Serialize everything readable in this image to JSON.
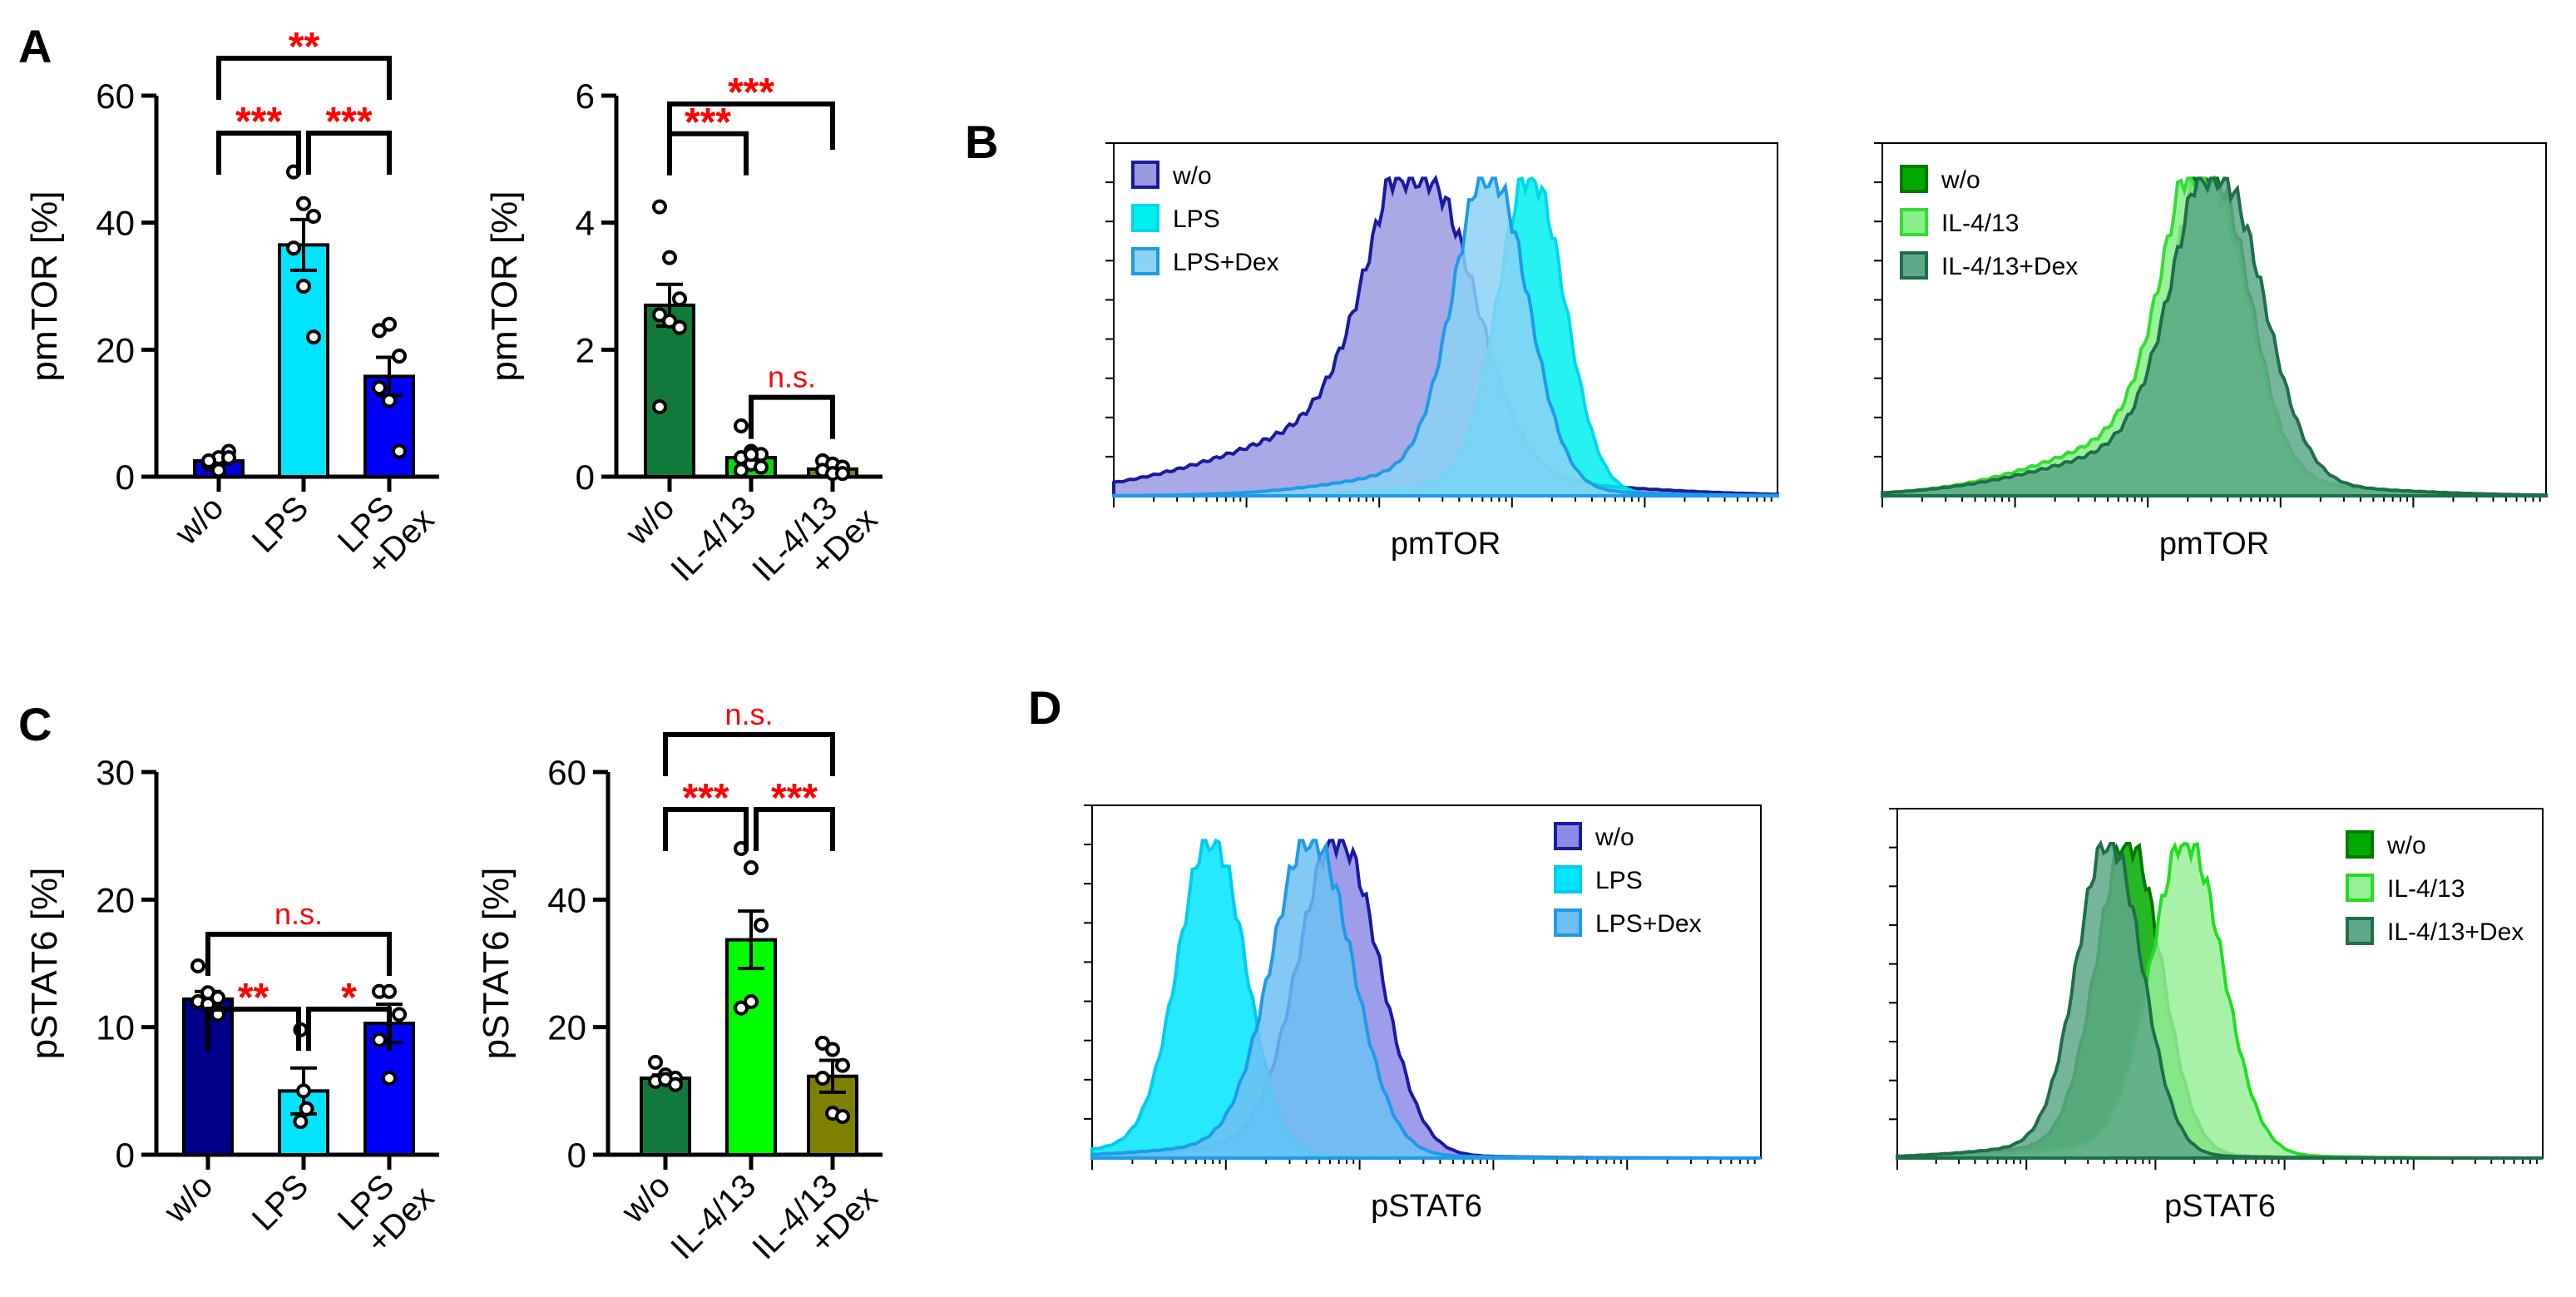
{
  "panel_labels": [
    "A",
    "B",
    "C",
    "D"
  ],
  "chart_data": [
    {
      "id": "A1",
      "type": "bar",
      "ylabel": "pmTOR [%]",
      "ylim": [
        0,
        60
      ],
      "yticks": [
        0,
        20,
        40,
        60
      ],
      "categories": [
        "w/o",
        "LPS",
        "LPS\n+Dex"
      ],
      "colors": [
        "#0000E0",
        "#00E5FF",
        "#0000FF"
      ],
      "values": [
        2.5,
        36.5,
        15.8
      ],
      "sem": [
        0.5,
        4,
        3
      ],
      "points": [
        [
          2,
          3,
          4,
          2.5,
          1,
          3
        ],
        [
          48,
          43,
          41,
          36,
          30,
          22
        ],
        [
          23,
          24,
          19,
          14,
          12,
          4
        ]
      ],
      "significance": [
        {
          "pair": [
            0,
            1
          ],
          "label": "***",
          "level": 1
        },
        {
          "pair": [
            1,
            2
          ],
          "label": "***",
          "level": 1
        },
        {
          "pair": [
            0,
            2
          ],
          "label": "**",
          "level": 2
        }
      ]
    },
    {
      "id": "A2",
      "type": "bar",
      "ylabel": "pmTOR [%]",
      "ylim": [
        0,
        6
      ],
      "yticks": [
        0,
        2,
        4,
        6
      ],
      "categories": [
        "w/o",
        "IL-4/13",
        "IL-4/13\n+Dex"
      ],
      "colors": [
        "#117A3A",
        "#00DD00",
        "#808000"
      ],
      "values": [
        2.7,
        0.3,
        0.12
      ],
      "sem": [
        0.33,
        0.07,
        0.04
      ],
      "points": [
        [
          4.25,
          3.45,
          2.8,
          2.55,
          2.45,
          2.35,
          1.1
        ],
        [
          0.8,
          0.4,
          0.35,
          0.3,
          0.2,
          0.15,
          0.1,
          0.35
        ],
        [
          0.25,
          0.2,
          0.15,
          0.1,
          0.05,
          0.05
        ]
      ],
      "significance": [
        {
          "pair": [
            0,
            1
          ],
          "label": "***",
          "level": 1
        },
        {
          "pair": [
            1,
            2
          ],
          "label": "n.s.",
          "level": 0
        },
        {
          "pair": [
            0,
            2
          ],
          "label": "***",
          "level": 2
        }
      ]
    },
    {
      "id": "C1",
      "type": "bar",
      "ylabel": "pSTAT6 [%]",
      "ylim": [
        0,
        30
      ],
      "yticks": [
        0,
        10,
        20,
        30
      ],
      "categories": [
        "w/o",
        "LPS",
        "LPS\n+Dex"
      ],
      "colors": [
        "#00008B",
        "#00E5FF",
        "#0000FF"
      ],
      "values": [
        12.2,
        5,
        10.3
      ],
      "sem": [
        0.6,
        1.8,
        1.5
      ],
      "points": [
        [
          14.8,
          12.7,
          12.3,
          12,
          11.8,
          11
        ],
        [
          9.8,
          5,
          3.6,
          2.6
        ],
        [
          12.8,
          12.8,
          11,
          9,
          6
        ]
      ],
      "significance": [
        {
          "pair": [
            0,
            1
          ],
          "label": "**",
          "level": 1
        },
        {
          "pair": [
            1,
            2
          ],
          "label": "*",
          "level": 1
        },
        {
          "pair": [
            0,
            2
          ],
          "label": "n.s.",
          "level": 2
        }
      ]
    },
    {
      "id": "C2",
      "type": "bar",
      "ylabel": "pSTAT6 [%]",
      "ylim": [
        0,
        60
      ],
      "yticks": [
        0,
        20,
        40,
        60
      ],
      "categories": [
        "w/o",
        "IL-4/13",
        "IL-4/13\n+Dex"
      ],
      "colors": [
        "#117A3A",
        "#00FF00",
        "#808000"
      ],
      "values": [
        12,
        33.7,
        12.3
      ],
      "sem": [
        0.5,
        4.5,
        2.5
      ],
      "points": [
        [
          14.5,
          12.5,
          12,
          11.5,
          11.8,
          11
        ],
        [
          48,
          45,
          36,
          23,
          24
        ],
        [
          17.5,
          16.5,
          14,
          12,
          6.5,
          6
        ]
      ],
      "significance": [
        {
          "pair": [
            0,
            1
          ],
          "label": "***",
          "level": 1
        },
        {
          "pair": [
            1,
            2
          ],
          "label": "***",
          "level": 1
        },
        {
          "pair": [
            0,
            2
          ],
          "label": "n.s.",
          "level": 2
        }
      ]
    },
    {
      "id": "B1",
      "type": "area",
      "xlabel": "pmTOR",
      "legend_position": "top-left",
      "series": [
        {
          "name": "w/o",
          "fill": "#9A9AE0",
          "stroke": "#1A1AA0",
          "mode": 0.47,
          "width": 0.075,
          "tail": 0.3
        },
        {
          "name": "LPS",
          "fill": "#00F0F0",
          "stroke": "#00D8E8",
          "mode": 0.63,
          "width": 0.05,
          "tail": 0.05
        },
        {
          "name": "LPS+Dex",
          "fill": "#8CD2F5",
          "stroke": "#1E9BE8",
          "mode": 0.57,
          "width": 0.055,
          "tail": 0.1
        }
      ]
    },
    {
      "id": "B2",
      "type": "area",
      "xlabel": "pmTOR",
      "legend_position": "top-left",
      "series": [
        {
          "name": "w/o",
          "fill": "#00AA00",
          "stroke": "#007A00",
          "mode": 0.5,
          "width": 0.055,
          "tail": 0.2
        },
        {
          "name": "IL-4/13",
          "fill": "#88EE88",
          "stroke": "#33DD33",
          "mode": 0.49,
          "width": 0.06,
          "tail": 0.25
        },
        {
          "name": "IL-4/13+Dex",
          "fill": "#5FA88A",
          "stroke": "#1F6E4A",
          "mode": 0.51,
          "width": 0.065,
          "tail": 0.2
        }
      ]
    },
    {
      "id": "D1",
      "type": "area",
      "xlabel": "pSTAT6",
      "legend_position": "top-right",
      "series": [
        {
          "name": "w/o",
          "fill": "#8C8CE6",
          "stroke": "#1A1AA0",
          "mode": 0.37,
          "width": 0.06,
          "tail": 0.05
        },
        {
          "name": "LPS",
          "fill": "#00E5FF",
          "stroke": "#00CCEE",
          "mode": 0.18,
          "width": 0.05,
          "tail": 0.05
        },
        {
          "name": "LPS+Dex",
          "fill": "#6FBFF2",
          "stroke": "#1E9BE8",
          "mode": 0.33,
          "width": 0.06,
          "tail": 0.05
        }
      ]
    },
    {
      "id": "D2",
      "type": "area",
      "xlabel": "pSTAT6",
      "legend_position": "top-right",
      "series": [
        {
          "name": "w/o",
          "fill": "#00AA00",
          "stroke": "#007A00",
          "mode": 0.36,
          "width": 0.05,
          "tail": 0.05
        },
        {
          "name": "IL-4/13",
          "fill": "#99EE99",
          "stroke": "#22DD22",
          "mode": 0.45,
          "width": 0.055,
          "tail": 0.05
        },
        {
          "name": "IL-4/13+Dex",
          "fill": "#5FA88A",
          "stroke": "#1F6E4A",
          "mode": 0.33,
          "width": 0.05,
          "tail": 0.05
        }
      ]
    }
  ]
}
